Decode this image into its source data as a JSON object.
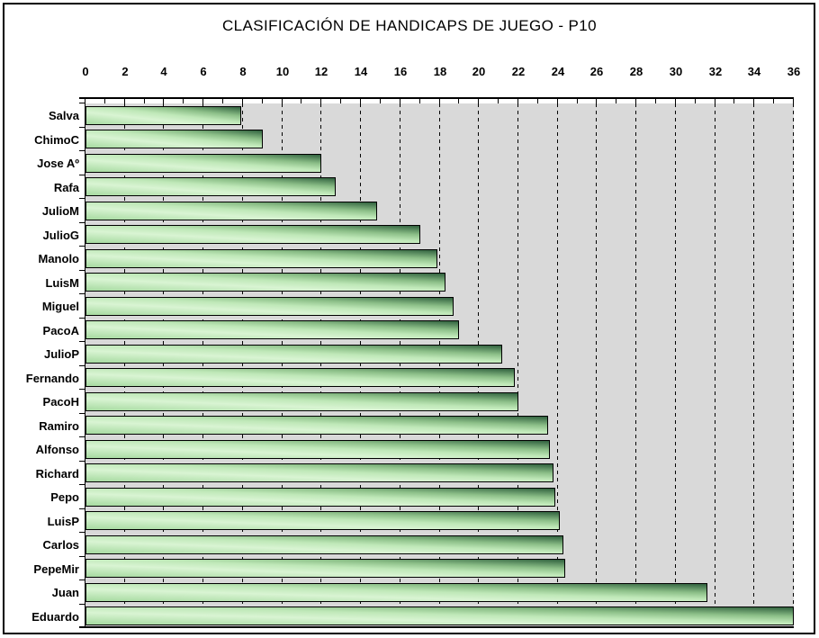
{
  "title": "CLASIFICACIÓN DE HANDICAPS DE JUEGO - P10",
  "chart_data": {
    "type": "bar",
    "orientation": "horizontal",
    "title": "CLASIFICACIÓN DE HANDICAPS DE JUEGO - P10",
    "categories": [
      "Salva",
      "ChimoC",
      "Jose Aº",
      "Rafa",
      "JulioM",
      "JulioG",
      "Manolo",
      "LuisM",
      "Miguel",
      "PacoA",
      "JulioP",
      "Fernando",
      "PacoH",
      "Ramiro",
      "Alfonso",
      "Richard",
      "Pepo",
      "LuisP",
      "Carlos",
      "PepeMir",
      "Juan",
      "Eduardo"
    ],
    "values": [
      7.9,
      9.0,
      12.0,
      12.7,
      14.8,
      17.0,
      17.9,
      18.3,
      18.7,
      19.0,
      21.2,
      21.8,
      22.0,
      23.5,
      23.6,
      23.8,
      23.9,
      24.1,
      24.3,
      24.4,
      31.6,
      36.0
    ],
    "xlabel": "",
    "ylabel": "",
    "axis": {
      "min": 0,
      "max": 36,
      "major_step": 2,
      "minor_step": 1,
      "tick_labels": [
        "0",
        "2",
        "4",
        "6",
        "8",
        "10",
        "12",
        "14",
        "16",
        "18",
        "20",
        "22",
        "24",
        "26",
        "28",
        "30",
        "32",
        "34",
        "36"
      ],
      "position": "top"
    },
    "grid": "vertical-dashed-major",
    "legend": "none",
    "colors": {
      "chart_bg": "#ffffff",
      "plot_bg": "#d9d9d9",
      "grid": "#000000",
      "text": "#000000",
      "border": "#000000",
      "bar_base": "#a6daa0",
      "bar_highlight": "#d9f4d3",
      "bar_mid": "#bfe8b8",
      "bar_shade": "#8cbf88",
      "bar_dark": "#30613e"
    }
  }
}
